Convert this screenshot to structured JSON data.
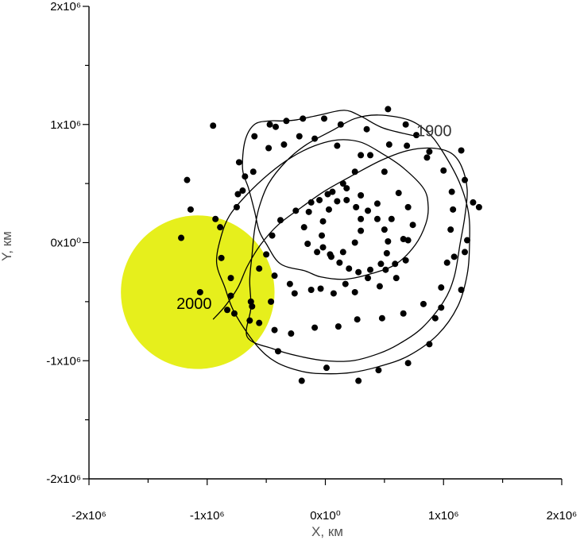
{
  "chart_data": {
    "type": "scatter",
    "xlabel": "X, км",
    "ylabel": "Y, км",
    "xlim": [
      -2000000,
      2000000
    ],
    "ylim": [
      -2000000,
      2000000
    ],
    "x_tick_labels": [
      "-2x10⁶",
      "-1x10⁶",
      "0x10⁰",
      "1x10⁶",
      "2x10⁶"
    ],
    "y_tick_labels": [
      "2x10⁶",
      "1x10⁶",
      "0x10⁰",
      "-1x10⁶",
      "-2x10⁶"
    ],
    "grid": false,
    "highlight_disk": {
      "center": [
        -1080000,
        -420000
      ],
      "radius": 650000,
      "color": "#e6ef1c"
    },
    "annotations": [
      {
        "text": "1900",
        "x": 770000,
        "y": 900000,
        "color": "#333333"
      },
      {
        "text": "2000",
        "x": -1260000,
        "y": -560000,
        "color": "#000000"
      }
    ],
    "trajectory": {
      "color": "#000000",
      "points": [
        [
          770000,
          900000
        ],
        [
          490000,
          970000
        ],
        [
          300000,
          1070000
        ],
        [
          160000,
          1120000
        ],
        [
          -50000,
          1080000
        ],
        [
          -240000,
          1040000
        ],
        [
          -360000,
          1030000
        ],
        [
          -470000,
          1030000
        ],
        [
          -600000,
          1000000
        ],
        [
          -680000,
          860000
        ],
        [
          -700000,
          620000
        ],
        [
          -650000,
          460000
        ],
        [
          -600000,
          270000
        ],
        [
          -560000,
          100000
        ],
        [
          -500000,
          -10000
        ],
        [
          -380000,
          -180000
        ],
        [
          -170000,
          -240000
        ],
        [
          -40000,
          -290000
        ],
        [
          170000,
          -310000
        ],
        [
          400000,
          -260000
        ],
        [
          600000,
          -180000
        ],
        [
          760000,
          -20000
        ],
        [
          850000,
          160000
        ],
        [
          870000,
          310000
        ],
        [
          830000,
          460000
        ],
        [
          650000,
          640000
        ],
        [
          470000,
          760000
        ],
        [
          300000,
          850000
        ],
        [
          110000,
          870000
        ],
        [
          -90000,
          820000
        ],
        [
          -290000,
          720000
        ],
        [
          -480000,
          580000
        ],
        [
          -670000,
          400000
        ],
        [
          -810000,
          230000
        ],
        [
          -880000,
          60000
        ],
        [
          -920000,
          -170000
        ],
        [
          -850000,
          -380000
        ],
        [
          -770000,
          -590000
        ],
        [
          -590000,
          -860000
        ],
        [
          -420000,
          -1010000
        ],
        [
          -200000,
          -1090000
        ],
        [
          0,
          -1110000
        ],
        [
          220000,
          -1100000
        ],
        [
          450000,
          -1050000
        ],
        [
          700000,
          -960000
        ],
        [
          950000,
          -780000
        ],
        [
          1120000,
          -540000
        ],
        [
          1200000,
          -270000
        ],
        [
          1220000,
          0
        ],
        [
          1210000,
          260000
        ],
        [
          1130000,
          520000
        ],
        [
          980000,
          790000
        ],
        [
          860000,
          940000
        ],
        [
          700000,
          1040000
        ],
        [
          450000,
          1080000
        ],
        [
          250000,
          1050000
        ],
        [
          60000,
          950000
        ],
        [
          -160000,
          830000
        ],
        [
          -330000,
          690000
        ],
        [
          -480000,
          500000
        ],
        [
          -560000,
          300000
        ],
        [
          -600000,
          100000
        ],
        [
          -620000,
          -100000
        ],
        [
          -640000,
          -320000
        ],
        [
          -630000,
          -550000
        ],
        [
          -660000,
          -800000
        ],
        [
          -440000,
          -900000
        ],
        [
          -230000,
          -960000
        ],
        [
          0,
          -1000000
        ],
        [
          230000,
          -1000000
        ],
        [
          450000,
          -940000
        ],
        [
          620000,
          -860000
        ],
        [
          820000,
          -720000
        ],
        [
          1000000,
          -500000
        ],
        [
          1090000,
          -290000
        ],
        [
          1140000,
          -10000
        ],
        [
          1180000,
          220000
        ],
        [
          1200000,
          450000
        ],
        [
          1150000,
          650000
        ],
        [
          1060000,
          760000
        ],
        [
          900000,
          800000
        ],
        [
          700000,
          780000
        ],
        [
          480000,
          700000
        ],
        [
          250000,
          580000
        ],
        [
          0,
          440000
        ],
        [
          -200000,
          300000
        ],
        [
          -400000,
          150000
        ],
        [
          -550000,
          -20000
        ],
        [
          -660000,
          -200000
        ],
        [
          -740000,
          -380000
        ],
        [
          -850000,
          -540000
        ],
        [
          -950000,
          -650000
        ]
      ]
    },
    "markers": [
      [
        -1060000,
        -420000
      ],
      [
        -1220000,
        40000
      ],
      [
        -1140000,
        280000
      ],
      [
        -1170000,
        530000
      ],
      [
        -950000,
        990000
      ],
      [
        -730000,
        680000
      ],
      [
        -600000,
        900000
      ],
      [
        -470000,
        1000000
      ],
      [
        -420000,
        980000
      ],
      [
        -330000,
        1030000
      ],
      [
        -190000,
        1050000
      ],
      [
        -10000,
        1050000
      ],
      [
        130000,
        1000000
      ],
      [
        350000,
        960000
      ],
      [
        530000,
        1130000
      ],
      [
        680000,
        1000000
      ],
      [
        770000,
        910000
      ],
      [
        880000,
        770000
      ],
      [
        1150000,
        780000
      ],
      [
        1180000,
        530000
      ],
      [
        1250000,
        340000
      ],
      [
        1300000,
        300000
      ],
      [
        1200000,
        20000
      ],
      [
        1180000,
        -80000
      ],
      [
        1090000,
        -120000
      ],
      [
        1150000,
        -400000
      ],
      [
        980000,
        -550000
      ],
      [
        930000,
        -640000
      ],
      [
        880000,
        -860000
      ],
      [
        700000,
        -1020000
      ],
      [
        450000,
        -1080000
      ],
      [
        280000,
        -1170000
      ],
      [
        10000,
        -1060000
      ],
      [
        -200000,
        -1170000
      ],
      [
        -400000,
        -920000
      ],
      [
        -560000,
        -680000
      ],
      [
        -630000,
        -500000
      ],
      [
        -800000,
        -450000
      ],
      [
        -800000,
        -300000
      ],
      [
        -880000,
        -130000
      ],
      [
        -890000,
        130000
      ],
      [
        -930000,
        200000
      ],
      [
        -750000,
        300000
      ],
      [
        -700000,
        440000
      ],
      [
        -680000,
        560000
      ],
      [
        -740000,
        410000
      ],
      [
        -610000,
        600000
      ],
      [
        -480000,
        800000
      ],
      [
        -350000,
        830000
      ],
      [
        -220000,
        900000
      ],
      [
        -90000,
        880000
      ],
      [
        100000,
        820000
      ],
      [
        300000,
        740000
      ],
      [
        500000,
        600000
      ],
      [
        620000,
        420000
      ],
      [
        700000,
        300000
      ],
      [
        740000,
        150000
      ],
      [
        700000,
        20000
      ],
      [
        590000,
        -180000
      ],
      [
        510000,
        -230000
      ],
      [
        360000,
        -300000
      ],
      [
        170000,
        -350000
      ],
      [
        -40000,
        -390000
      ],
      [
        -260000,
        -430000
      ],
      [
        -460000,
        -500000
      ],
      [
        -620000,
        -540000
      ],
      [
        -830000,
        -570000
      ],
      [
        -770000,
        -600000
      ],
      [
        -640000,
        -660000
      ],
      [
        -430000,
        -740000
      ],
      [
        -290000,
        -770000
      ],
      [
        -90000,
        -720000
      ],
      [
        110000,
        -710000
      ],
      [
        270000,
        -650000
      ],
      [
        480000,
        -640000
      ],
      [
        660000,
        -600000
      ],
      [
        830000,
        -520000
      ],
      [
        980000,
        -380000
      ],
      [
        1030000,
        -170000
      ],
      [
        1060000,
        110000
      ],
      [
        1080000,
        280000
      ],
      [
        1070000,
        430000
      ],
      [
        1000000,
        610000
      ],
      [
        860000,
        720000
      ],
      [
        690000,
        820000
      ],
      [
        540000,
        830000
      ],
      [
        380000,
        740000
      ],
      [
        250000,
        600000
      ],
      [
        150000,
        500000
      ],
      [
        20000,
        410000
      ],
      [
        -120000,
        340000
      ],
      [
        -250000,
        270000
      ],
      [
        -380000,
        190000
      ],
      [
        -450000,
        60000
      ],
      [
        -500000,
        -100000
      ],
      [
        -560000,
        -220000
      ],
      [
        -430000,
        -280000
      ],
      [
        -300000,
        -350000
      ],
      [
        -120000,
        -400000
      ],
      [
        70000,
        -430000
      ],
      [
        250000,
        -420000
      ],
      [
        460000,
        -370000
      ],
      [
        600000,
        -300000
      ],
      [
        680000,
        -150000
      ],
      [
        660000,
        30000
      ],
      [
        560000,
        200000
      ],
      [
        440000,
        330000
      ],
      [
        300000,
        400000
      ],
      [
        180000,
        460000
      ],
      [
        60000,
        430000
      ],
      [
        -50000,
        360000
      ],
      [
        -140000,
        260000
      ],
      [
        -180000,
        130000
      ],
      [
        -150000,
        -10000
      ],
      [
        -70000,
        -80000
      ],
      [
        40000,
        -100000
      ],
      [
        150000,
        -80000
      ],
      [
        250000,
        0
      ],
      [
        300000,
        100000
      ],
      [
        300000,
        200000
      ],
      [
        260000,
        300000
      ],
      [
        180000,
        360000
      ],
      [
        100000,
        350000
      ],
      [
        30000,
        280000
      ],
      [
        -20000,
        180000
      ],
      [
        -30000,
        60000
      ],
      [
        -20000,
        -40000
      ],
      [
        50000,
        -120000
      ],
      [
        120000,
        -170000
      ],
      [
        200000,
        -220000
      ],
      [
        280000,
        -250000
      ],
      [
        380000,
        -230000
      ],
      [
        470000,
        -180000
      ],
      [
        520000,
        -90000
      ],
      [
        530000,
        10000
      ],
      [
        500000,
        110000
      ],
      [
        440000,
        200000
      ],
      [
        360000,
        270000
      ]
    ]
  }
}
